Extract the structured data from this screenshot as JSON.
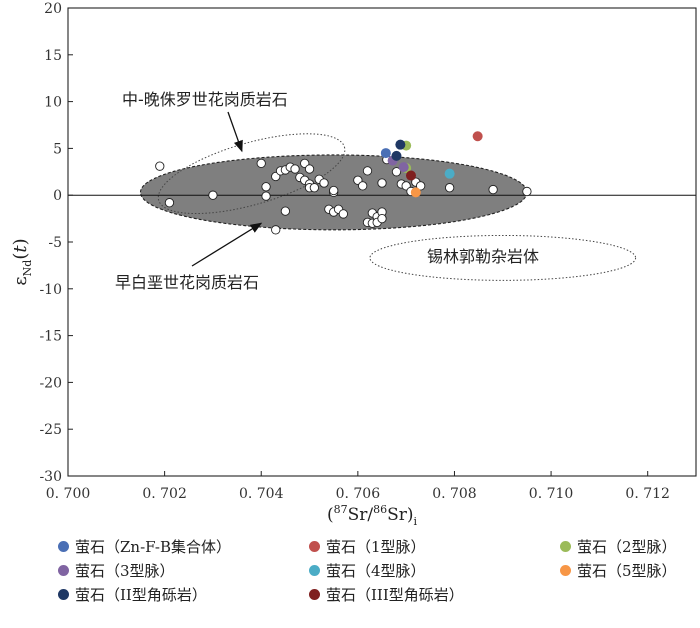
{
  "chart_data": {
    "type": "scatter",
    "xlabel": "(87Sr/86Sr)i",
    "ylabel": "εNd(t)",
    "xlim": [
      0.7,
      0.713
    ],
    "ylim": [
      -30,
      20
    ],
    "x_ticks": [
      "0. 700",
      "0. 702",
      "0. 704",
      "0. 706",
      "0. 708",
      "0. 710",
      "0. 712"
    ],
    "y_ticks": [
      "20",
      "15",
      "10",
      "5",
      "0",
      "-5",
      "-10",
      "-15",
      "-20",
      "-25",
      "-30"
    ],
    "reference_line_y": 0,
    "fields": [
      {
        "name": "早白垩世花岗质岩石",
        "style": "gray-filled-dashed",
        "cx": 0.7055,
        "cy": 0.3,
        "rx": 0.004,
        "ry": 4.0
      },
      {
        "name": "中-晚侏罗世花岗质岩石",
        "style": "dotted-open",
        "cx": 0.7038,
        "cy": 2.3,
        "rx": 0.002,
        "ry": 3.3,
        "rotate": -16
      },
      {
        "name": "锡林郭勒杂岩体",
        "style": "dotted-open",
        "cx": 0.709,
        "cy": -6.7,
        "rx": 0.00275,
        "ry": 2.4
      }
    ],
    "annotations": [
      {
        "text": "中-晚侏罗世花岗质岩石",
        "arrow_to": [
          0.7036,
          4.7
        ]
      },
      {
        "text": "早白垩世花岗质岩石",
        "arrow_to": [
          0.704,
          -3.0
        ]
      },
      {
        "text": "锡林郭勒杂岩体"
      }
    ],
    "series": [
      {
        "name": "",
        "color": "#ffffff",
        "x": [
          0.7019,
          0.7021,
          0.703,
          0.704,
          0.7041,
          0.7041,
          0.7043,
          0.7043,
          0.7044,
          0.7045,
          0.7045,
          0.7046,
          0.7047,
          0.7048,
          0.7049,
          0.7049,
          0.705,
          0.705,
          0.705,
          0.7051,
          0.7052,
          0.7053,
          0.7054,
          0.7055,
          0.7055,
          0.7055,
          0.7056,
          0.7057,
          0.706,
          0.7061,
          0.7062,
          0.7062,
          0.7063,
          0.7063,
          0.7064,
          0.7064,
          0.7065,
          0.7065,
          0.7065,
          0.7066,
          0.7068,
          0.7069,
          0.707,
          0.7071,
          0.7072,
          0.7073,
          0.7079,
          0.7088,
          0.7095
        ],
        "y": [
          3.1,
          -0.8,
          0.0,
          3.4,
          0.9,
          -0.1,
          -3.7,
          2.0,
          2.6,
          2.7,
          -1.7,
          3.0,
          2.8,
          1.9,
          3.4,
          1.6,
          1.2,
          0.8,
          2.8,
          0.8,
          1.7,
          1.3,
          -1.5,
          -1.8,
          0.3,
          0.5,
          -1.5,
          -2.0,
          1.6,
          1.0,
          2.6,
          -2.9,
          -1.9,
          -3.0,
          -2.3,
          -2.9,
          1.3,
          -1.8,
          -2.5,
          3.8,
          2.5,
          1.2,
          1.0,
          0.4,
          1.4,
          1.0,
          0.8,
          0.6,
          0.4
        ]
      },
      {
        "name": "萤石（Zn-F-B集合体）",
        "color": "#4a6fb5",
        "x": [
          0.70658
        ],
        "y": [
          4.5
        ]
      },
      {
        "name": "萤石（1型脉）",
        "color": "#c0504d",
        "x": [
          0.70848
        ],
        "y": [
          6.3
        ]
      },
      {
        "name": "萤石（2型脉）",
        "color": "#9bbb59",
        "x": [
          0.707,
          0.707
        ],
        "y": [
          5.3,
          2.9
        ]
      },
      {
        "name": "萤石（3型脉）",
        "color": "#8064a2",
        "x": [
          0.70672,
          0.70695
        ],
        "y": [
          3.7,
          3.0
        ]
      },
      {
        "name": "萤石（4型脉）",
        "color": "#4bacc6",
        "x": [
          0.7079
        ],
        "y": [
          2.3
        ]
      },
      {
        "name": "萤石（5型脉）",
        "color": "#f79646",
        "x": [
          0.7072
        ],
        "y": [
          0.3
        ]
      },
      {
        "name": "萤石（II型角砾岩）",
        "color": "#1f3864",
        "x": [
          0.70688,
          0.7068
        ],
        "y": [
          5.4,
          4.2
        ]
      },
      {
        "name": "萤石（III型角砾岩）",
        "color": "#7f1f1f",
        "x": [
          0.7071
        ],
        "y": [
          2.1
        ]
      }
    ]
  },
  "legend": {
    "items": [
      {
        "label": "萤石（Zn-F-B集合体）",
        "color": "#4a6fb5"
      },
      {
        "label": "萤石（1型脉）",
        "color": "#c0504d"
      },
      {
        "label": "萤石（2型脉）",
        "color": "#9bbb59"
      },
      {
        "label": "萤石（3型脉）",
        "color": "#8064a2"
      },
      {
        "label": "萤石（4型脉）",
        "color": "#4bacc6"
      },
      {
        "label": "萤石（5型脉）",
        "color": "#f79646"
      },
      {
        "label": "萤石（II型角砾岩）",
        "color": "#1f3864"
      },
      {
        "label": "萤石（III型角砾岩）",
        "color": "#7f1f1f"
      }
    ]
  }
}
